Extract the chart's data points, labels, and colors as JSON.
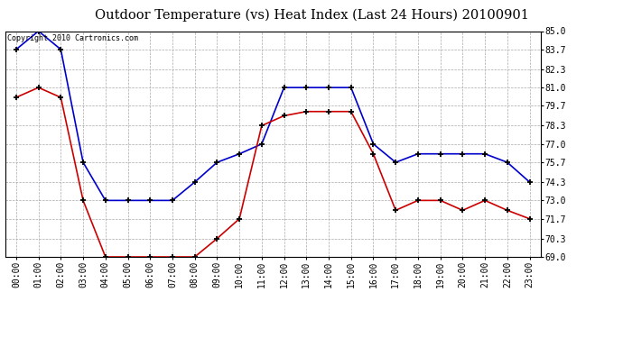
{
  "title": "Outdoor Temperature (vs) Heat Index (Last 24 Hours) 20100901",
  "copyright_text": "Copyright 2010 Cartronics.com",
  "hours": [
    "00:00",
    "01:00",
    "02:00",
    "03:00",
    "04:00",
    "05:00",
    "06:00",
    "07:00",
    "08:00",
    "09:00",
    "10:00",
    "11:00",
    "12:00",
    "13:00",
    "14:00",
    "15:00",
    "16:00",
    "17:00",
    "18:00",
    "19:00",
    "20:00",
    "21:00",
    "22:00",
    "23:00"
  ],
  "blue_data": [
    83.7,
    85.0,
    83.7,
    75.7,
    73.0,
    73.0,
    73.0,
    73.0,
    74.3,
    75.7,
    76.3,
    77.0,
    81.0,
    81.0,
    81.0,
    81.0,
    77.0,
    75.7,
    76.3,
    76.3,
    76.3,
    76.3,
    75.7,
    74.3
  ],
  "red_data": [
    80.3,
    81.0,
    80.3,
    73.0,
    69.0,
    69.0,
    69.0,
    69.0,
    69.0,
    70.3,
    71.7,
    78.3,
    79.0,
    79.3,
    79.3,
    79.3,
    76.3,
    72.3,
    73.0,
    73.0,
    72.3,
    73.0,
    72.3,
    71.7
  ],
  "blue_color": "#0000cc",
  "red_color": "#cc0000",
  "bg_color": "#ffffff",
  "grid_color": "#aaaaaa",
  "ylim_min": 69.0,
  "ylim_max": 85.0,
  "yticks": [
    69.0,
    70.3,
    71.7,
    73.0,
    74.3,
    75.7,
    77.0,
    78.3,
    79.7,
    81.0,
    82.3,
    83.7,
    85.0
  ],
  "title_fontsize": 10.5,
  "tick_fontsize": 7,
  "copyright_fontsize": 6
}
